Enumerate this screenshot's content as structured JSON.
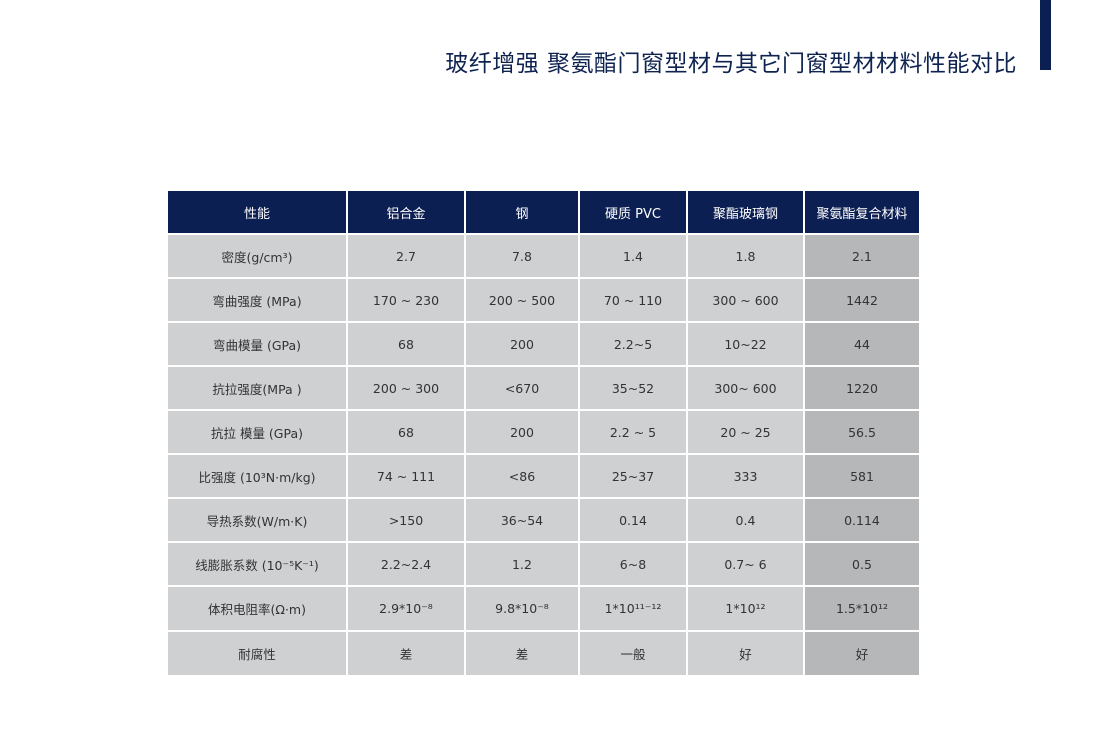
{
  "title": "玻纤增强 聚氨酯门窗型材与其它门窗型材材料性能对比",
  "table": {
    "headers": [
      "性能",
      "铝合金",
      "钢",
      "硬质 PVC",
      "聚酯玻璃钢",
      "聚氨酯复合材料"
    ],
    "rows": [
      [
        "密度(g/cm³)",
        "2.7",
        "7.8",
        "1.4",
        "1.8",
        "2.1"
      ],
      [
        "弯曲强度 (MPa)",
        "170 ~ 230",
        "200 ~ 500",
        "70 ~ 110",
        "300 ~ 600",
        "1442"
      ],
      [
        "弯曲模量 (GPa)",
        "68",
        "200",
        "2.2~5",
        "10~22",
        "44"
      ],
      [
        "抗拉强度(MPa )",
        "200 ~ 300",
        "<670",
        "35~52",
        "300~ 600",
        "1220"
      ],
      [
        "抗拉 模量 (GPa)",
        "68",
        "200",
        "2.2 ~ 5",
        "20 ~ 25",
        "56.5"
      ],
      [
        "比强度 (10³N·m/kg)",
        "74 ~ 111",
        "<86",
        "25~37",
        "333",
        "581"
      ],
      [
        "导热系数(W/m·K)",
        ">150",
        "36~54",
        "0.14",
        "0.4",
        "0.114"
      ],
      [
        "线膨胀系数 (10⁻⁵K⁻¹)",
        "2.2~2.4",
        "1.2",
        "6~8",
        "0.7~ 6",
        "0.5"
      ],
      [
        "体积电阻率(Ω·m)",
        "2.9*10⁻⁸",
        "9.8*10⁻⁸",
        "1*10¹¹⁻¹²",
        "1*10¹²",
        "1.5*10¹²"
      ],
      [
        "耐腐性",
        "差",
        "差",
        "一般",
        "好",
        "好"
      ]
    ]
  }
}
